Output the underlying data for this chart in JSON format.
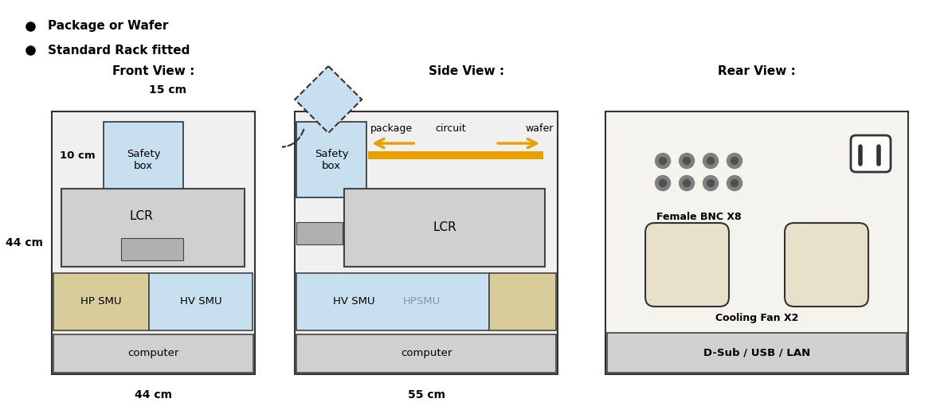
{
  "title_front": "Front View :",
  "title_side": "Side View :",
  "title_rear": "Rear View :",
  "bullet1": "Package or Wafer",
  "bullet2": "Standard Rack fitted",
  "label_44cm_left": "44 cm",
  "label_44cm_bottom": "44 cm",
  "label_55cm": "55 cm",
  "label_15cm": "15 cm",
  "label_10cm": "10 cm",
  "color_bg": "#f0f0f0",
  "color_white": "#ffffff",
  "color_light_blue": "#c8dff0",
  "color_light_gray": "#d0d0d0",
  "color_gray": "#b0b0b0",
  "color_tan": "#d8cc9a",
  "color_border": "#333333",
  "color_orange": "#e8a000",
  "color_beige": "#e8e0c8"
}
